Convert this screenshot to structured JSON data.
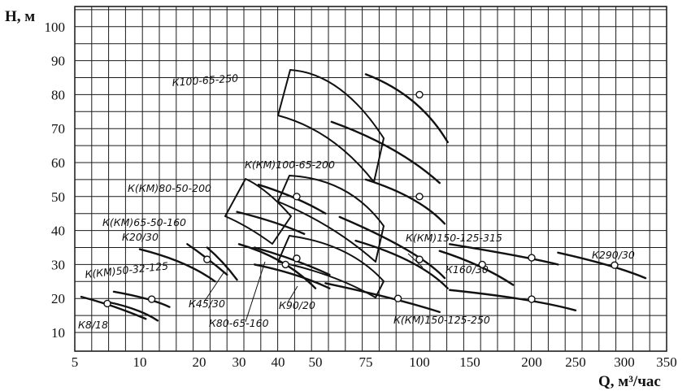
{
  "chart_data": {
    "type": "line",
    "title": "",
    "ylabel": "H, м",
    "xlabel": "Q, м³/час",
    "x_scale": "nonlinear (log-like)",
    "x_ticks": [
      5,
      10,
      20,
      30,
      40,
      50,
      75,
      100,
      150,
      200,
      250,
      300,
      350
    ],
    "y_ticks": [
      10,
      20,
      30,
      40,
      50,
      60,
      70,
      80,
      90,
      100
    ],
    "ylim": [
      5,
      105
    ],
    "grid": true,
    "series": [
      {
        "name": "К8/18",
        "kind": "curve",
        "x": [
          5.5,
          8,
          11
        ],
        "y": [
          20.5,
          18,
          14
        ],
        "marker": [
          7.5,
          18.5
        ]
      },
      {
        "name": "К8/18",
        "kind": "curve",
        "x": [
          7.5,
          10,
          13
        ],
        "y": [
          19,
          17,
          13.5
        ],
        "marker": null
      },
      {
        "name": "К(КМ)50-32-125",
        "kind": "curve",
        "x": [
          8,
          12,
          15
        ],
        "y": [
          22,
          20,
          17.5
        ],
        "marker": [
          12,
          19.8
        ]
      },
      {
        "name": "К20/30",
        "kind": "curve",
        "x": [
          10,
          18,
          24
        ],
        "y": [
          34.5,
          31,
          25
        ],
        "marker": null
      },
      {
        "name": "К20/30",
        "kind": "curve",
        "x": [
          18,
          22,
          27
        ],
        "y": [
          36,
          32,
          27
        ],
        "marker": [
          22,
          31.5
        ]
      },
      {
        "name": "К45/30",
        "kind": "curve",
        "x": [
          22,
          26,
          29.5
        ],
        "y": [
          35,
          31,
          25.5
        ],
        "marker": null
      },
      {
        "name": "К45/30",
        "kind": "curve",
        "x": [
          30,
          42,
          50
        ],
        "y": [
          36,
          32,
          23
        ],
        "marker": [
          42,
          30
        ]
      },
      {
        "name": "К80-65-160",
        "kind": "curve",
        "x": [
          34,
          45,
          57
        ],
        "y": [
          35,
          31.5,
          27
        ],
        "marker": [
          45,
          31.8
        ]
      },
      {
        "name": "К80-65-160",
        "kind": "curve",
        "x": [
          34,
          45,
          57
        ],
        "y": [
          30,
          27.5,
          23
        ],
        "marker": null
      },
      {
        "name": "К(КМ)80-50-200",
        "kind": "curve",
        "x": [
          35,
          45,
          55
        ],
        "y": [
          53.5,
          50,
          45
        ],
        "marker": [
          45,
          50
        ]
      },
      {
        "name": "К(КМ)80-50-200",
        "kind": "curve",
        "x": [
          29.5,
          40,
          47
        ],
        "y": [
          45.5,
          42.5,
          39
        ],
        "marker": null
      },
      {
        "name": "К90/20",
        "kind": "curve",
        "x": [
          55,
          90,
          120
        ],
        "y": [
          24.5,
          20,
          16
        ],
        "marker": [
          90,
          20
        ]
      },
      {
        "name": "К(КМ)100-65-200",
        "kind": "curve",
        "x": [
          75,
          100,
          125
        ],
        "y": [
          55,
          50,
          42
        ],
        "marker": [
          100,
          50
        ]
      },
      {
        "name": "К(КМ)100-65-200",
        "kind": "curve",
        "x": [
          62,
          100,
          125
        ],
        "y": [
          44,
          34,
          26
        ],
        "marker": null
      },
      {
        "name": "К(КМ)100-65-200",
        "kind": "curve",
        "x": [
          70,
          100,
          128
        ],
        "y": [
          37,
          31.5,
          23
        ],
        "marker": [
          100,
          31.5
        ]
      },
      {
        "name": "К100-65-250",
        "kind": "curve",
        "x": [
          75,
          100,
          128
        ],
        "y": [
          86,
          80,
          66
        ],
        "marker": [
          100,
          80
        ]
      },
      {
        "name": "К100-65-250",
        "kind": "curve",
        "x": [
          58,
          90,
          120
        ],
        "y": [
          72,
          65,
          54
        ],
        "marker": null
      },
      {
        "name": "К(КМ)150-125-315",
        "kind": "curve",
        "x": [
          130,
          200,
          230
        ],
        "y": [
          36,
          32,
          30
        ],
        "marker": [
          200,
          32
        ]
      },
      {
        "name": "К160/30",
        "kind": "curve",
        "x": [
          120,
          160,
          185
        ],
        "y": [
          34,
          30,
          24
        ],
        "marker": [
          160,
          30
        ]
      },
      {
        "name": "К(КМ)150-125-250",
        "kind": "curve",
        "x": [
          130,
          200,
          250
        ],
        "y": [
          22.5,
          20,
          16.5
        ],
        "marker": [
          200,
          19.8
        ]
      },
      {
        "name": "К290/30",
        "kind": "curve",
        "x": [
          230,
          290,
          325
        ],
        "y": [
          33.5,
          29.8,
          26
        ],
        "marker": [
          290,
          29.8
        ]
      }
    ],
    "labels": [
      "К8/18",
      "К(КМ)50-32-125",
      "К20/30",
      "К(КМ)65-50-160",
      "К(КМ)80-50-200",
      "К45/30",
      "К80-65-160",
      "К90/20",
      "К100-65-250",
      "К(КМ)100-65-200",
      "К(КМ)150-125-315",
      "К160/30",
      "К290/30",
      "К(КМ)150-125-250"
    ]
  }
}
